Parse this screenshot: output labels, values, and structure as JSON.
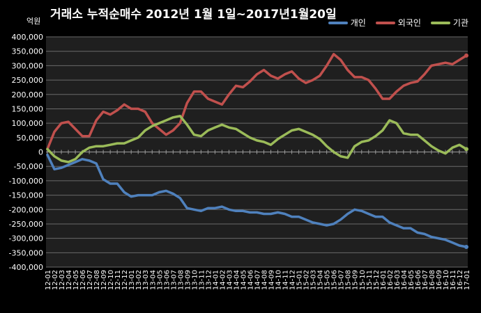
{
  "chart_data": {
    "type": "line",
    "title": "거래소 누적순매수 2012년 1월 1일~2017년1월20일",
    "unit_label": "억원",
    "ylim": [
      -400000,
      400000
    ],
    "y_ticks": [
      "400,000",
      "350,000",
      "300,000",
      "250,000",
      "200,000",
      "150,000",
      "100,000",
      "50,000",
      "0",
      "-50,000",
      "-100,000",
      "-150,000",
      "-200,000",
      "-250,000",
      "-300,000",
      "-350,000",
      "-400,000"
    ],
    "y_tick_values": [
      400000,
      350000,
      300000,
      250000,
      200000,
      150000,
      100000,
      50000,
      0,
      -50000,
      -100000,
      -150000,
      -200000,
      -250000,
      -300000,
      -350000,
      -400000
    ],
    "grid": true,
    "legend": "top-right",
    "categories": [
      "12-01",
      "12-02",
      "12-03",
      "12-04",
      "12-05",
      "12-06",
      "12-07",
      "12-08",
      "12-09",
      "12-10",
      "12-11",
      "12-12",
      "13-01",
      "13-02",
      "13-03",
      "13-04",
      "13-05",
      "13-06",
      "13-07",
      "13-08",
      "13-09",
      "13-10",
      "13-11",
      "13-12",
      "14-01",
      "14-02",
      "14-03",
      "14-04",
      "14-05",
      "14-06",
      "14-07",
      "14-08",
      "14-09",
      "14-10",
      "14-11",
      "14-12",
      "15-01",
      "15-02",
      "15-03",
      "15-04",
      "15-05",
      "15-06",
      "15-07",
      "15-08",
      "15-09",
      "15-10",
      "15-11",
      "15-12",
      "16-01",
      "16-02",
      "16-03",
      "16-04",
      "16-05",
      "16-06",
      "16-07",
      "16-08",
      "16-09",
      "16-10",
      "16-11",
      "16-12",
      "17-01"
    ],
    "series": [
      {
        "name": "개인",
        "color": "#4F81BD",
        "values": [
          -10000,
          -60000,
          -55000,
          -45000,
          -35000,
          -25000,
          -30000,
          -40000,
          -95000,
          -110000,
          -110000,
          -140000,
          -155000,
          -150000,
          -150000,
          -150000,
          -140000,
          -135000,
          -145000,
          -160000,
          -195000,
          -200000,
          -205000,
          -195000,
          -195000,
          -190000,
          -200000,
          -205000,
          -205000,
          -210000,
          -210000,
          -215000,
          -215000,
          -210000,
          -215000,
          -225000,
          -225000,
          -235000,
          -245000,
          -250000,
          -255000,
          -250000,
          -235000,
          -215000,
          -200000,
          -205000,
          -215000,
          -225000,
          -225000,
          -245000,
          -255000,
          -265000,
          -265000,
          -280000,
          -285000,
          -295000,
          -300000,
          -305000,
          -315000,
          -325000,
          -330000
        ]
      },
      {
        "name": "외국인",
        "color": "#C0504D",
        "values": [
          10000,
          70000,
          100000,
          105000,
          80000,
          55000,
          55000,
          110000,
          140000,
          130000,
          145000,
          165000,
          150000,
          150000,
          140000,
          100000,
          80000,
          60000,
          75000,
          100000,
          170000,
          210000,
          210000,
          185000,
          175000,
          165000,
          200000,
          230000,
          225000,
          245000,
          270000,
          285000,
          265000,
          255000,
          270000,
          280000,
          255000,
          240000,
          250000,
          265000,
          300000,
          340000,
          320000,
          285000,
          260000,
          260000,
          250000,
          220000,
          185000,
          185000,
          210000,
          230000,
          240000,
          245000,
          270000,
          300000,
          305000,
          310000,
          305000,
          320000,
          335000
        ]
      },
      {
        "name": "기관",
        "color": "#9BBB59",
        "values": [
          10000,
          -15000,
          -30000,
          -35000,
          -25000,
          0,
          15000,
          20000,
          20000,
          25000,
          30000,
          30000,
          40000,
          50000,
          75000,
          90000,
          100000,
          110000,
          120000,
          125000,
          95000,
          60000,
          55000,
          75000,
          85000,
          95000,
          85000,
          80000,
          65000,
          50000,
          40000,
          35000,
          25000,
          45000,
          60000,
          75000,
          80000,
          70000,
          60000,
          45000,
          20000,
          0,
          -15000,
          -20000,
          20000,
          35000,
          40000,
          55000,
          75000,
          110000,
          100000,
          65000,
          60000,
          60000,
          40000,
          20000,
          5000,
          -5000,
          15000,
          25000,
          10000
        ]
      }
    ]
  }
}
